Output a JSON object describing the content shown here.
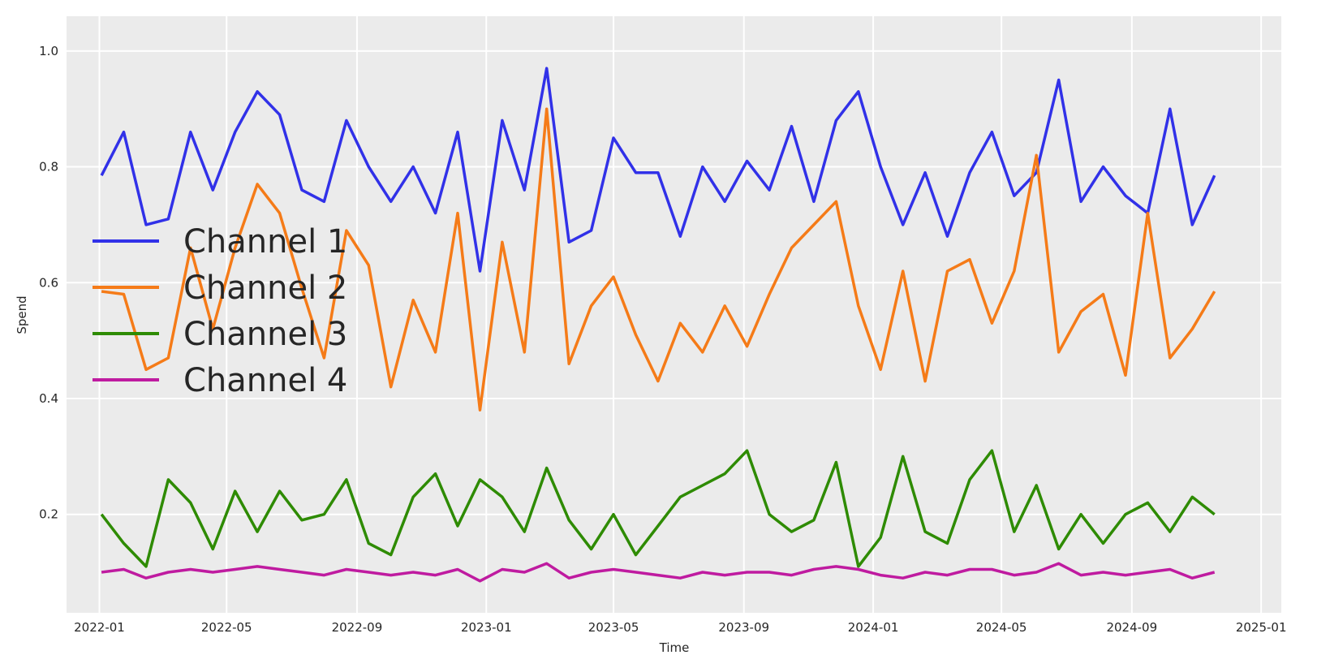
{
  "chart_data": {
    "type": "line",
    "xlabel": "Time",
    "ylabel": "Spend",
    "xlim": [
      "2021-12-01",
      "2025-01-20"
    ],
    "ylim": [
      0.03,
      1.06
    ],
    "x_ticks": [
      "2022-01",
      "2022-05",
      "2022-09",
      "2023-01",
      "2023-05",
      "2023-09",
      "2024-01",
      "2024-05",
      "2024-09",
      "2025-01"
    ],
    "y_ticks": [
      "0.2",
      "0.4",
      "0.6",
      "0.8",
      "1.0"
    ],
    "y_tick_values": [
      0.2,
      0.4,
      0.6,
      0.8,
      1.0
    ],
    "grid": true,
    "legend_position": "left",
    "x": [
      "2022-01-03",
      "2022-01-24",
      "2022-02-14",
      "2022-03-07",
      "2022-03-28",
      "2022-04-18",
      "2022-05-09",
      "2022-05-30",
      "2022-06-20",
      "2022-07-11",
      "2022-08-01",
      "2022-08-22",
      "2022-09-12",
      "2022-10-03",
      "2022-10-24",
      "2022-11-14",
      "2022-12-05",
      "2022-12-26",
      "2023-01-16",
      "2023-02-06",
      "2023-02-27",
      "2023-03-20",
      "2023-04-10",
      "2023-05-01",
      "2023-05-22",
      "2023-06-12",
      "2023-07-03",
      "2023-07-24",
      "2023-08-14",
      "2023-09-04",
      "2023-09-25",
      "2023-10-16",
      "2023-11-06",
      "2023-11-27",
      "2023-12-18",
      "2024-01-08",
      "2024-01-29",
      "2024-02-19",
      "2024-03-11",
      "2024-04-01",
      "2024-04-22",
      "2024-05-13",
      "2024-06-03",
      "2024-06-24",
      "2024-07-15",
      "2024-08-05",
      "2024-08-26",
      "2024-09-16",
      "2024-10-07",
      "2024-10-28",
      "2024-11-18"
    ],
    "series": [
      {
        "name": "Channel 1",
        "color": "#3131e8",
        "values": [
          0.785,
          0.86,
          0.7,
          0.71,
          0.86,
          0.76,
          0.86,
          0.93,
          0.89,
          0.76,
          0.74,
          0.88,
          0.8,
          0.74,
          0.8,
          0.72,
          0.86,
          0.62,
          0.88,
          0.76,
          0.97,
          0.67,
          0.69,
          0.85,
          0.79,
          0.79,
          0.68,
          0.8,
          0.74,
          0.81,
          0.76,
          0.87,
          0.74,
          0.88,
          0.93,
          0.8,
          0.7,
          0.79,
          0.68,
          0.79,
          0.86,
          0.75,
          0.79,
          0.95,
          0.74,
          0.8,
          0.75,
          0.72,
          0.9,
          0.7,
          0.785
        ]
      },
      {
        "name": "Channel 2",
        "color": "#f57b18",
        "values": [
          0.585,
          0.58,
          0.45,
          0.47,
          0.66,
          0.52,
          0.66,
          0.77,
          0.72,
          0.59,
          0.47,
          0.69,
          0.63,
          0.42,
          0.57,
          0.48,
          0.72,
          0.38,
          0.67,
          0.48,
          0.9,
          0.46,
          0.56,
          0.61,
          0.51,
          0.43,
          0.53,
          0.48,
          0.56,
          0.49,
          0.58,
          0.66,
          0.7,
          0.74,
          0.56,
          0.45,
          0.62,
          0.43,
          0.62,
          0.64,
          0.53,
          0.62,
          0.82,
          0.48,
          0.55,
          0.58,
          0.44,
          0.72,
          0.47,
          0.52,
          0.585
        ]
      },
      {
        "name": "Channel 3",
        "color": "#2e8b02",
        "values": [
          0.2,
          0.15,
          0.11,
          0.26,
          0.22,
          0.14,
          0.24,
          0.17,
          0.24,
          0.19,
          0.2,
          0.26,
          0.15,
          0.13,
          0.23,
          0.27,
          0.18,
          0.26,
          0.23,
          0.17,
          0.28,
          0.19,
          0.14,
          0.2,
          0.13,
          0.18,
          0.23,
          0.25,
          0.27,
          0.31,
          0.2,
          0.17,
          0.19,
          0.29,
          0.11,
          0.16,
          0.3,
          0.17,
          0.15,
          0.26,
          0.31,
          0.17,
          0.25,
          0.14,
          0.2,
          0.15,
          0.2,
          0.22,
          0.17,
          0.23,
          0.2
        ]
      },
      {
        "name": "Channel 4",
        "color": "#bf1ba0",
        "values": [
          0.1,
          0.105,
          0.09,
          0.1,
          0.105,
          0.1,
          0.105,
          0.11,
          0.105,
          0.1,
          0.095,
          0.105,
          0.1,
          0.095,
          0.1,
          0.095,
          0.105,
          0.085,
          0.105,
          0.1,
          0.115,
          0.09,
          0.1,
          0.105,
          0.1,
          0.095,
          0.09,
          0.1,
          0.095,
          0.1,
          0.1,
          0.095,
          0.105,
          0.11,
          0.105,
          0.095,
          0.09,
          0.1,
          0.095,
          0.105,
          0.105,
          0.095,
          0.1,
          0.115,
          0.095,
          0.1,
          0.095,
          0.1,
          0.105,
          0.09,
          0.1
        ]
      }
    ]
  }
}
